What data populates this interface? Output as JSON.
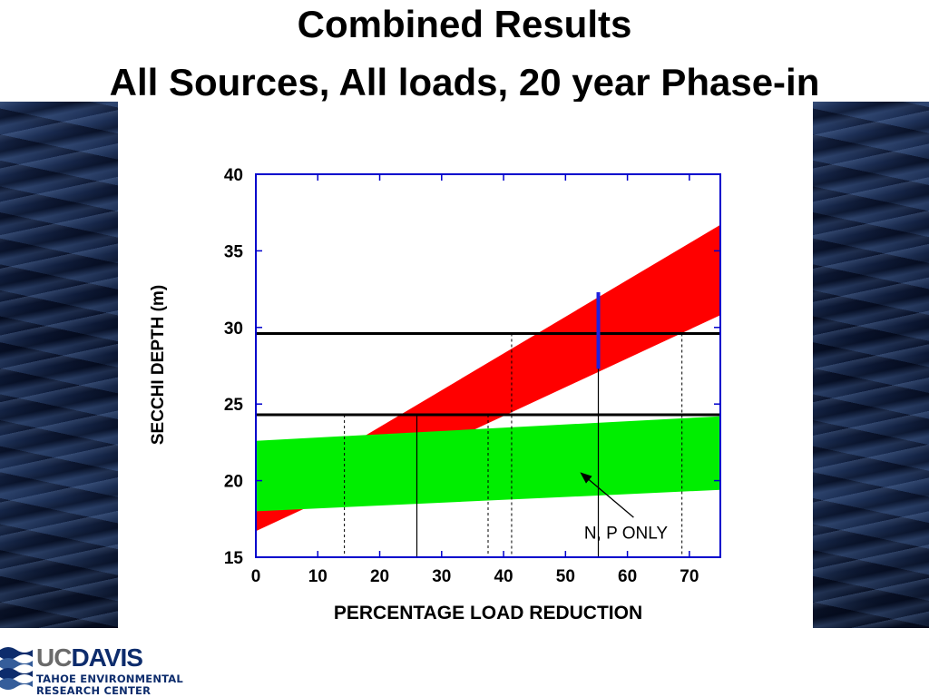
{
  "slide": {
    "title_line1": "Combined Results",
    "title_line2": "All Sources, All loads, 20 year Phase-in"
  },
  "logo": {
    "uc": "UC",
    "davis": "DAVIS",
    "line1": "TAHOE ENVIRONMENTAL",
    "line2": "RESEARCH CENTER"
  },
  "colors": {
    "all_sources_band": "#ff0000",
    "np_only_band": "#00ee00",
    "marker": "#2020dd",
    "frame": "#0000cc"
  },
  "chart_data": {
    "type": "area",
    "title": "",
    "xlabel": "PERCENTAGE LOAD REDUCTION",
    "ylabel": "SECCHI DEPTH (m)",
    "xlim": [
      0,
      75
    ],
    "ylim": [
      15,
      40
    ],
    "xticks": [
      0,
      10,
      20,
      30,
      40,
      50,
      60,
      70
    ],
    "yticks": [
      15,
      20,
      25,
      30,
      35,
      40
    ],
    "grid": false,
    "bands": [
      {
        "color": "red",
        "x": [
          0,
          75
        ],
        "upper": [
          18.7,
          36.7
        ],
        "lower": [
          16.7,
          30.8
        ]
      },
      {
        "color": "green",
        "x": [
          0,
          75
        ],
        "upper": [
          22.6,
          24.2
        ],
        "lower": [
          18.0,
          19.4
        ]
      }
    ],
    "hlines": [
      29.6,
      24.3
    ],
    "vlines_solid": [
      {
        "x": 26.0,
        "y_top": 24.3
      },
      {
        "x": 55.3,
        "y_top": 32.3
      }
    ],
    "vlines_dashed": [
      {
        "x": 14.3,
        "y_top": 24.3
      },
      {
        "x": 37.5,
        "y_top": 24.3
      },
      {
        "x": 41.3,
        "y_top": 29.6
      },
      {
        "x": 68.8,
        "y_top": 29.6
      }
    ],
    "marker_segment": {
      "x": 55.3,
      "y_start": 27.3,
      "y_end": 32.3
    },
    "annotation": {
      "text": "N, P ONLY",
      "text_x": 53,
      "text_y": 16.2,
      "arrow_from": [
        61,
        17.6
      ],
      "arrow_to": [
        52.5,
        20.5
      ]
    }
  }
}
